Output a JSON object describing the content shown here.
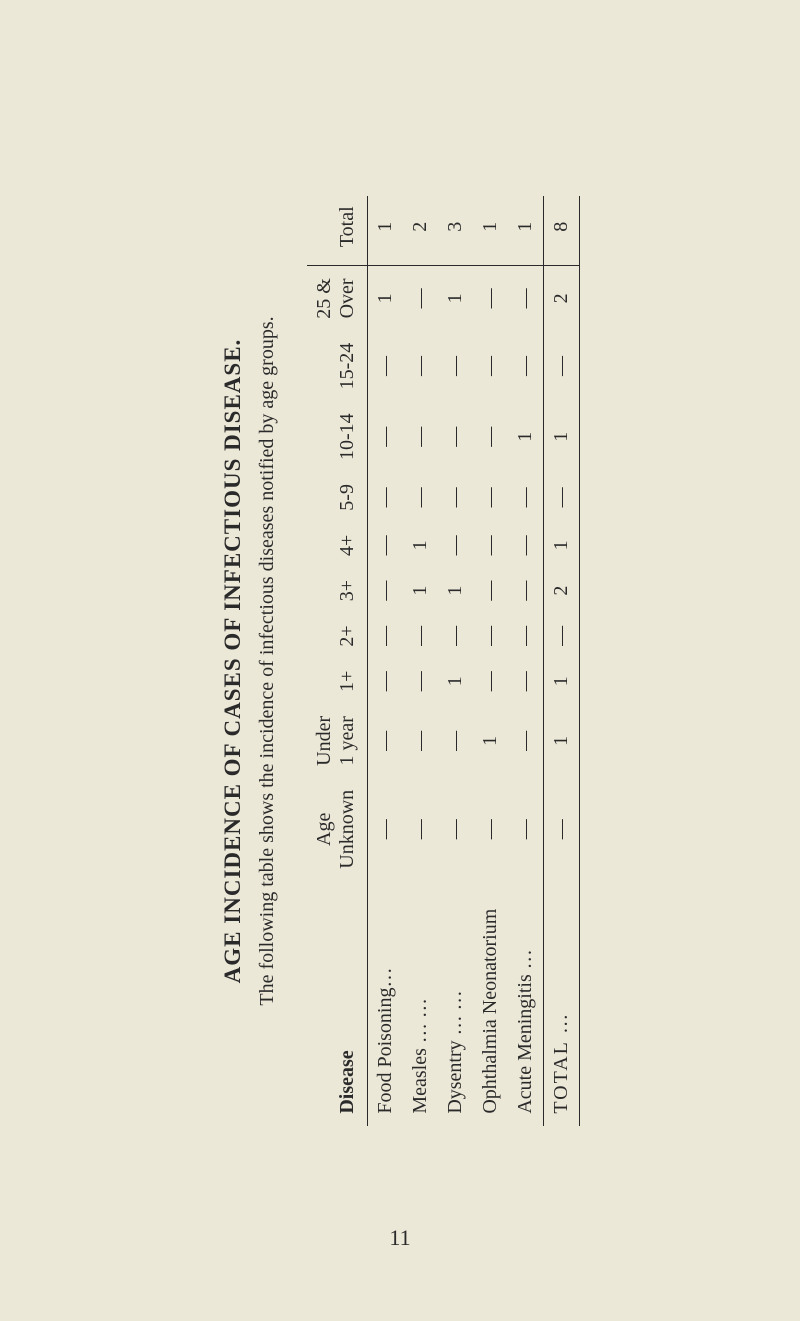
{
  "title": "AGE INCIDENCE OF CASES OF INFECTIOUS DISEASE.",
  "subtitle": "The following table shows the incidence of infectious diseases notified by age groups.",
  "page_number": "11",
  "dash": "—",
  "table": {
    "disease_header": "Disease",
    "columns": [
      "Age\nUnknown",
      "Under\n1 year",
      "1+",
      "2+",
      "3+",
      "4+",
      "5-9",
      "10-14",
      "15-24",
      "25 &\nOver",
      "Total"
    ],
    "rows": [
      {
        "disease": "Food Poisoning…",
        "values": [
          "—",
          "—",
          "—",
          "—",
          "—",
          "—",
          "—",
          "—",
          "—",
          "1",
          "1"
        ]
      },
      {
        "disease": "Measles    …    …",
        "values": [
          "—",
          "—",
          "—",
          "—",
          "1",
          "1",
          "—",
          "—",
          "—",
          "—",
          "2"
        ]
      },
      {
        "disease": "Dysentry   …    …",
        "values": [
          "—",
          "—",
          "1",
          "—",
          "1",
          "—",
          "—",
          "—",
          "—",
          "1",
          "3"
        ]
      },
      {
        "disease": "Ophthalmia Neonatorium",
        "values": [
          "—",
          "1",
          "—",
          "—",
          "—",
          "—",
          "—",
          "—",
          "—",
          "—",
          "1"
        ]
      },
      {
        "disease": "Acute Meningitis …",
        "values": [
          "—",
          "—",
          "—",
          "—",
          "—",
          "—",
          "—",
          "1",
          "—",
          "—",
          "1"
        ]
      }
    ],
    "total": {
      "label": "TOTAL    …",
      "values": [
        "—",
        "1",
        "1",
        "—",
        "2",
        "1",
        "—",
        "1",
        "—",
        "2",
        "8"
      ]
    }
  },
  "style": {
    "background_color": "#ece8d8",
    "text_color": "#2a2a2a",
    "rule_color": "#2a2a2a",
    "title_fontsize": 23,
    "body_fontsize": 20
  }
}
